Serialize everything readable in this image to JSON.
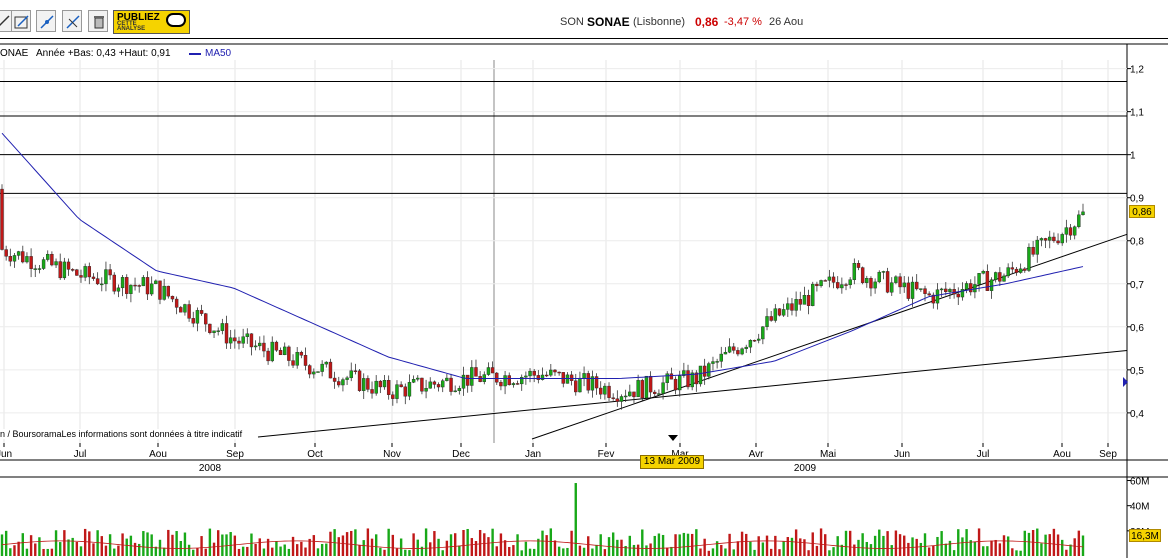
{
  "toolbar": {
    "buttons": [
      {
        "icon": "line-tool-icon"
      },
      {
        "icon": "annotate-icon"
      },
      {
        "icon": "crosshair-icon"
      },
      {
        "icon": "edit-lines-icon"
      },
      {
        "icon": "trash-icon"
      }
    ],
    "publish_label_1": "PUBLIEZ",
    "publish_label_2": "CETTE ANALYSE"
  },
  "quote": {
    "code": "SON",
    "name": "SONAE",
    "market": "(Lisbonne)",
    "price": "0,86",
    "change": "-3,47 %",
    "date": "26 Aou",
    "price_color": "#cc0000"
  },
  "legend": {
    "symbol": "ONAE",
    "range_text": "Année +Bas: 0,43 +Haut: 0,91",
    "ma_label": "MA50",
    "ma_color": "#2020b0"
  },
  "copyright": "n / BoursoramaLes informations sont données à titre indicatif",
  "last_price_label": "0,86",
  "last_volume_label": "16,3M",
  "cursor_date": "13 Mar 2009",
  "chart_data": [
    {
      "type": "candlestick",
      "ylim": [
        0.33,
        1.22
      ],
      "y_ticks": [
        "1,2",
        "1,1",
        "1",
        "0,9",
        "0,8",
        "0,7",
        "0,6",
        "0,5",
        "0,4"
      ],
      "y_tick_values": [
        1.2,
        1.1,
        1.0,
        0.9,
        0.8,
        0.7,
        0.6,
        0.5,
        0.4
      ],
      "x_ticks": [
        "Jun",
        "Jul",
        "Aou",
        "Sep",
        "Oct",
        "Nov",
        "Dec",
        "Jan",
        "Fev",
        "Mar",
        "Avr",
        "Mai",
        "Jun",
        "Jul",
        "Aou",
        "Sep"
      ],
      "year_labels": [
        "2008",
        "2009"
      ],
      "grid": true,
      "horizontal_levels": [
        1.17,
        1.09,
        1.0,
        0.91
      ],
      "series_price_month_closes": [
        {
          "month": "Jun 2008",
          "close": 0.78
        },
        {
          "month": "Jul 2008",
          "close": 0.72
        },
        {
          "month": "Aou 2008",
          "close": 0.69
        },
        {
          "month": "Sep 2008",
          "close": 0.57
        },
        {
          "month": "Oct 2008",
          "close": 0.51
        },
        {
          "month": "Nov 2008",
          "close": 0.45
        },
        {
          "month": "Dec 2008",
          "close": 0.48
        },
        {
          "month": "Jan 2009",
          "close": 0.49
        },
        {
          "month": "Fev 2009",
          "close": 0.45
        },
        {
          "month": "Mar 2009",
          "close": 0.48
        },
        {
          "month": "Avr 2009",
          "close": 0.62
        },
        {
          "month": "Mai 2009",
          "close": 0.73
        },
        {
          "month": "Jun 2009",
          "close": 0.67
        },
        {
          "month": "Jul 2009",
          "close": 0.72
        },
        {
          "month": "Aou 2009",
          "close": 0.86
        }
      ],
      "ma50_month_values": [
        {
          "month": "Jun 2008",
          "value": 1.05
        },
        {
          "month": "Jul 2008",
          "value": 0.85
        },
        {
          "month": "Aou 2008",
          "value": 0.73
        },
        {
          "month": "Sep 2008",
          "value": 0.69
        },
        {
          "month": "Oct 2008",
          "value": 0.61
        },
        {
          "month": "Nov 2008",
          "value": 0.53
        },
        {
          "month": "Dec 2008",
          "value": 0.48
        },
        {
          "month": "Jan 2009",
          "value": 0.48
        },
        {
          "month": "Fev 2009",
          "value": 0.48
        },
        {
          "month": "Mar 2009",
          "value": 0.49
        },
        {
          "month": "Avr 2009",
          "value": 0.52
        },
        {
          "month": "Mai 2009",
          "value": 0.59
        },
        {
          "month": "Jun 2009",
          "value": 0.67
        },
        {
          "month": "Jul 2009",
          "value": 0.7
        },
        {
          "month": "Aou 2009",
          "value": 0.74
        }
      ],
      "last_price": 0.86,
      "colors": {
        "up": "#18a818",
        "down": "#c01818",
        "ma": "#2020b0"
      }
    },
    {
      "type": "bar",
      "y_ticks": [
        "60M",
        "40M",
        "20M"
      ],
      "y_tick_values": [
        60,
        40,
        20
      ],
      "ylim": [
        0,
        62
      ],
      "last_volume": 16.3,
      "max_volume": 58
    }
  ]
}
